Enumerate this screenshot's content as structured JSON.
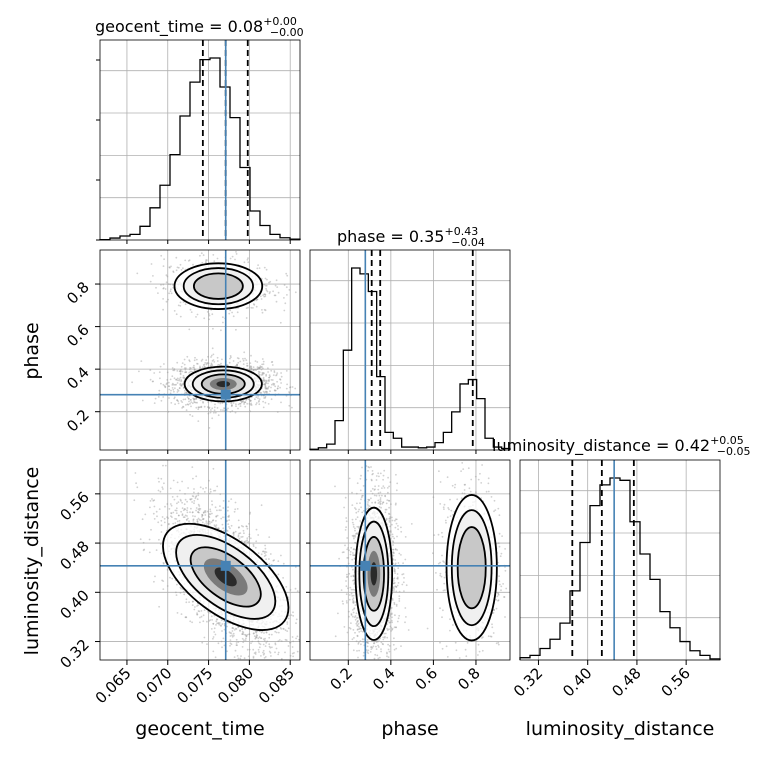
{
  "chart_data": {
    "type": "corner",
    "parameters": [
      "geocent_time",
      "phase",
      "luminosity_distance"
    ],
    "truths": {
      "geocent_time": 0.0771,
      "phase": 0.28,
      "luminosity_distance": 0.443
    },
    "titles": [
      {
        "param": "geocent_time",
        "text": "geocent_time = 0.08",
        "plus": "+0.00",
        "minus": "−0.00"
      },
      {
        "param": "phase",
        "text": "phase = 0.35",
        "plus": "+0.43",
        "minus": "−0.04"
      },
      {
        "param": "luminosity_distance",
        "text": "luminosity_distance = 0.42",
        "plus": "+0.05",
        "minus": "−0.05"
      }
    ],
    "axis_labels": {
      "x": [
        "geocent_time",
        "phase",
        "luminosity_distance"
      ],
      "y": [
        "phase",
        "luminosity_distance"
      ]
    },
    "ticks": {
      "geocent_time": [
        "0.065",
        "0.070",
        "0.075",
        "0.080",
        "0.085"
      ],
      "phase": [
        "0.2",
        "0.4",
        "0.6",
        "0.8"
      ],
      "luminosity_distance": [
        "0.32",
        "0.40",
        "0.48",
        "0.56"
      ]
    },
    "ranges": {
      "geocent_time": [
        0.0617,
        0.0862
      ],
      "phase": [
        0.02,
        0.96
      ],
      "luminosity_distance": [
        0.29,
        0.615
      ]
    },
    "histograms": {
      "geocent_time": {
        "bin_edges_range": [
          0.0617,
          0.0862
        ],
        "counts": [
          0.2,
          1.2,
          2.5,
          3.5,
          8.5,
          20,
          34,
          53,
          77,
          98,
          112,
          113,
          95,
          76,
          45,
          18,
          9,
          3.5,
          1.4,
          0.5
        ],
        "quantiles": [
          0.0743,
          0.0771,
          0.0798
        ]
      },
      "phase": {
        "bin_edges_range": [
          0.02,
          0.96
        ],
        "counts": [
          0.5,
          1.5,
          4,
          20,
          68,
          124,
          120,
          108,
          50,
          12,
          8,
          2,
          2,
          1.5,
          2,
          5,
          12,
          26,
          45,
          48,
          35,
          8,
          2,
          1
        ],
        "quantiles": [
          0.31,
          0.35,
          0.785
        ]
      },
      "luminosity_distance": {
        "bin_edges_range": [
          0.29,
          0.615
        ],
        "counts": [
          1,
          2,
          5,
          9,
          16,
          30,
          51,
          67,
          76,
          79,
          78,
          60,
          46,
          35,
          21,
          14,
          8,
          4,
          2,
          0.5
        ],
        "quantiles": [
          0.375,
          0.423,
          0.475
        ]
      }
    },
    "posterior_modes": {
      "geocent_time_vs_phase": [
        {
          "center": [
            0.0768,
            0.33
          ],
          "spread": [
            0.0022,
            0.038
          ],
          "weight": 0.76
        },
        {
          "center": [
            0.0762,
            0.79
          ],
          "spread": [
            0.0025,
            0.05
          ],
          "weight": 0.24
        }
      ],
      "geocent_time_vs_luminosity_distance": [
        {
          "center": [
            0.0771,
            0.425
          ],
          "spread": [
            0.0027,
            0.045
          ],
          "correlation": -0.6
        }
      ],
      "phase_vs_luminosity_distance": [
        {
          "center": [
            0.32,
            0.43
          ],
          "spread": [
            0.04,
            0.05
          ],
          "weight": 0.75
        },
        {
          "center": [
            0.78,
            0.44
          ],
          "spread": [
            0.055,
            0.055
          ],
          "weight": 0.25
        }
      ]
    },
    "grid": true,
    "colors": {
      "hist": "#000000",
      "truth": "#4682b4",
      "grid": "#b0b0b0",
      "points": "#9a9a9a"
    }
  }
}
